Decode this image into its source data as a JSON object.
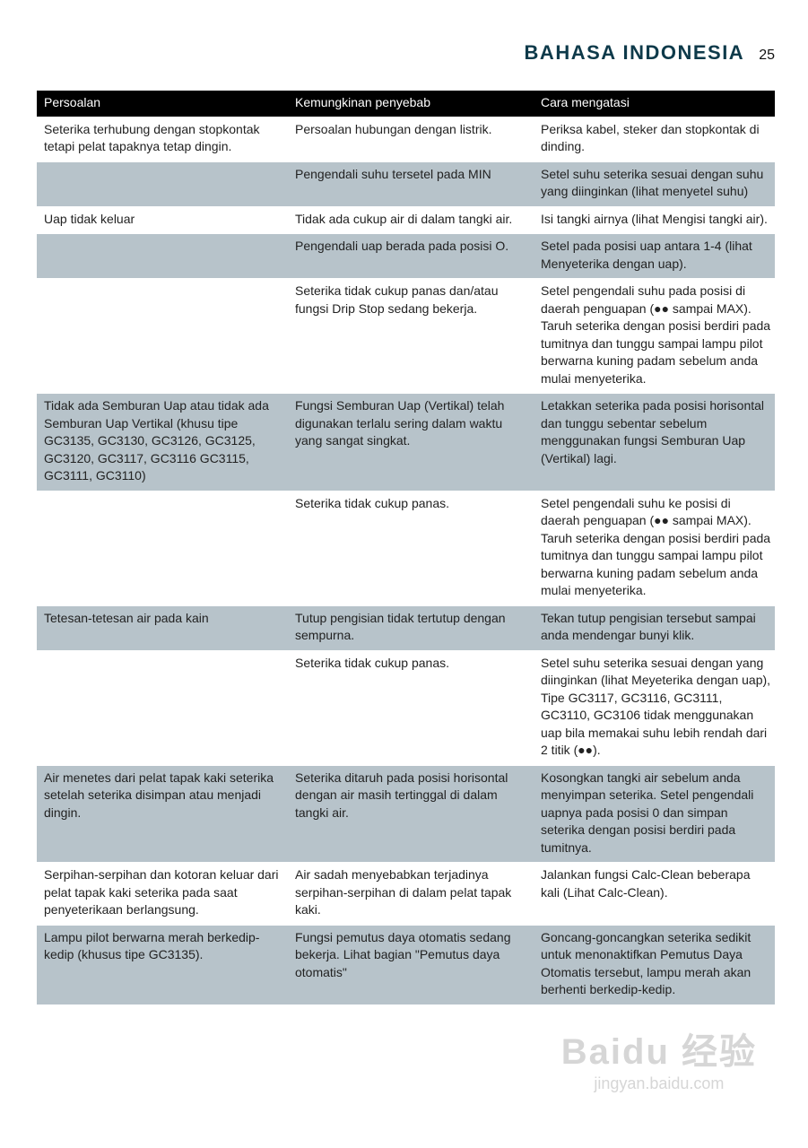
{
  "header": {
    "title": "BAHASA INDONESIA",
    "page": "25"
  },
  "table": {
    "columns": [
      "Persoalan",
      "Kemungkinan penyebab",
      "Cara mengatasi"
    ],
    "rows": [
      {
        "shade": false,
        "cells": [
          "Seterika terhubung dengan stopkontak tetapi pelat tapaknya tetap dingin.",
          "Persoalan hubungan dengan listrik.",
          "Periksa kabel, steker dan stopkontak di dinding."
        ]
      },
      {
        "shade": true,
        "cells": [
          "",
          "Pengendali suhu tersetel pada MIN",
          "Setel suhu seterika sesuai dengan suhu yang diinginkan (lihat menyetel suhu)"
        ]
      },
      {
        "shade": false,
        "cells": [
          "Uap tidak keluar",
          "Tidak ada cukup air di dalam tangki air.",
          "Isi tangki airnya (lihat Mengisi tangki air)."
        ]
      },
      {
        "shade": true,
        "cells": [
          "",
          "Pengendali uap berada pada posisi O.",
          "Setel pada posisi uap antara 1-4 (lihat Menyeterika dengan uap)."
        ]
      },
      {
        "shade": false,
        "cells": [
          "",
          "Seterika tidak cukup panas dan/atau fungsi Drip Stop sedang bekerja.",
          "Setel pengendali suhu pada posisi di daerah penguapan (●● sampai MAX). Taruh seterika dengan posisi berdiri pada tumitnya dan tunggu sampai lampu pilot berwarna kuning padam sebelum anda mulai menyeterika."
        ]
      },
      {
        "shade": true,
        "cells": [
          "Tidak ada Semburan Uap atau tidak ada Semburan Uap Vertikal (khusu tipe GC3135, GC3130, GC3126, GC3125, GC3120, GC3117, GC3116  GC3115, GC3111, GC3110)",
          "Fungsi Semburan Uap (Vertikal) telah digunakan terlalu sering dalam waktu yang sangat singkat.",
          "Letakkan seterika pada posisi horisontal dan tunggu sebentar sebelum menggunakan fungsi Semburan Uap (Vertikal) lagi."
        ]
      },
      {
        "shade": false,
        "cells": [
          "",
          "Seterika tidak cukup panas.",
          "Setel pengendali suhu ke posisi di daerah penguapan (●● sampai MAX). Taruh seterika dengan posisi berdiri pada tumitnya dan tunggu sampai lampu pilot berwarna kuning padam sebelum anda mulai menyeterika."
        ]
      },
      {
        "shade": true,
        "cells": [
          "Tetesan-tetesan air pada kain",
          "Tutup pengisian tidak tertutup dengan sempurna.",
          "Tekan tutup pengisian tersebut sampai anda mendengar bunyi klik."
        ]
      },
      {
        "shade": false,
        "cells": [
          "",
          "Seterika tidak cukup panas.",
          "Setel suhu seterika sesuai dengan yang diinginkan (lihat Meyeterika dengan uap), Tipe GC3117, GC3116, GC3111, GC3110, GC3106 tidak menggunakan uap bila memakai suhu lebih rendah dari 2 titik (●●)."
        ]
      },
      {
        "shade": true,
        "cells": [
          "Air menetes dari pelat tapak kaki seterika setelah seterika disimpan atau menjadi dingin.",
          "Seterika ditaruh pada posisi horisontal dengan air masih tertinggal di dalam tangki air.",
          "Kosongkan tangki air sebelum anda menyimpan seterika. Setel pengendali uapnya pada posisi 0 dan simpan seterika dengan posisi berdiri pada tumitnya."
        ]
      },
      {
        "shade": false,
        "cells": [
          "Serpihan-serpihan dan kotoran keluar dari pelat tapak kaki seterika pada saat penyeterikaan berlangsung.",
          "Air sadah menyebabkan terjadinya serpihan-serpihan di dalam pelat tapak kaki.",
          "Jalankan fungsi Calc-Clean beberapa kali (Lihat Calc-Clean)."
        ]
      },
      {
        "shade": true,
        "cells": [
          "Lampu pilot berwarna merah berkedip-kedip (khusus tipe GC3135).",
          "Fungsi pemutus daya otomatis sedang bekerja. Lihat bagian \"Pemutus daya otomatis\"",
          "Goncang-goncangkan seterika sedikit untuk menonaktifkan Pemutus Daya Otomatis tersebut, lampu merah akan berhenti berkedip-kedip."
        ]
      }
    ]
  },
  "watermark": {
    "logo": "Baidu 经验",
    "url": "jingyan.baidu.com"
  },
  "colors": {
    "title": "#0e3a4a",
    "header_bg": "#000000",
    "shade": "#b7c3ca"
  }
}
